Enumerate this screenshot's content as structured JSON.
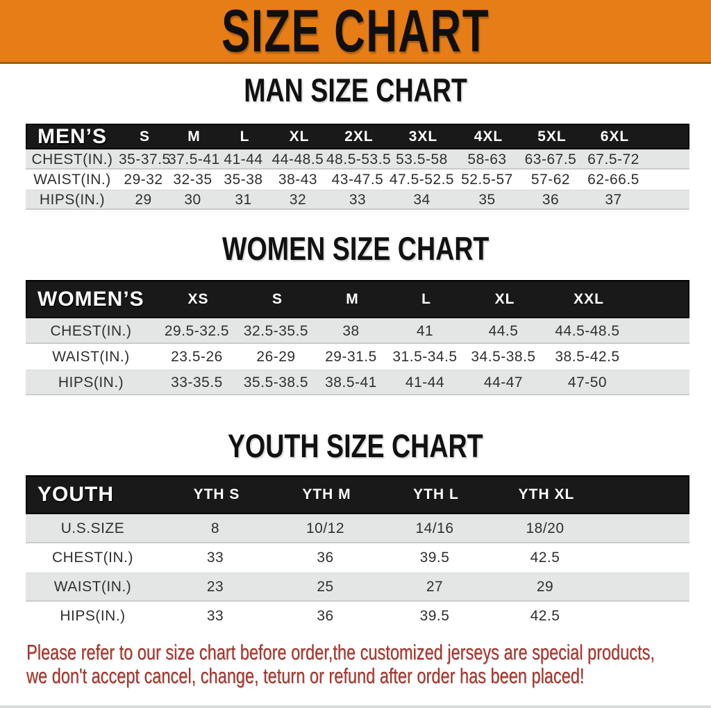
{
  "banner": {
    "title": "SIZE CHART"
  },
  "sections": {
    "men": {
      "heading": "MAN SIZE CHART",
      "header_label": "MEN’S",
      "columns": [
        "S",
        "M",
        "L",
        "XL",
        "2XL",
        "3XL",
        "4XL",
        "5XL",
        "6XL"
      ],
      "rows": [
        {
          "label": "CHEST(IN.)",
          "values": [
            "35-37.5",
            "37.5-41",
            "41-44",
            "44-48.5",
            "48.5-53.5",
            "53.5-58",
            "58-63",
            "63-67.5",
            "67.5-72"
          ]
        },
        {
          "label": "WAIST(IN.)",
          "values": [
            "29-32",
            "32-35",
            "35-38",
            "38-43",
            "43-47.5",
            "47.5-52.5",
            "52.5-57",
            "57-62",
            "62-66.5"
          ]
        },
        {
          "label": "HIPS(IN.)",
          "values": [
            "29",
            "30",
            "31",
            "32",
            "33",
            "34",
            "35",
            "36",
            "37"
          ]
        }
      ]
    },
    "women": {
      "heading": "WOMEN SIZE CHART",
      "header_label": "WOMEN’S",
      "columns": [
        "XS",
        "S",
        "M",
        "L",
        "XL",
        "XXL"
      ],
      "rows": [
        {
          "label": "CHEST(IN.)",
          "values": [
            "29.5-32.5",
            "32.5-35.5",
            "38",
            "41",
            "44.5",
            "44.5-48.5"
          ]
        },
        {
          "label": "WAIST(IN.)",
          "values": [
            "23.5-26",
            "26-29",
            "29-31.5",
            "31.5-34.5",
            "34.5-38.5",
            "38.5-42.5"
          ]
        },
        {
          "label": "HIPS(IN.)",
          "values": [
            "33-35.5",
            "35.5-38.5",
            "38.5-41",
            "41-44",
            "44-47",
            "47-50"
          ]
        }
      ]
    },
    "youth": {
      "heading": "YOUTH SIZE CHART",
      "header_label": "YOUTH",
      "columns": [
        "YTH S",
        "YTH M",
        "YTH L",
        "YTH XL"
      ],
      "rows": [
        {
          "label": "U.S.SIZE",
          "values": [
            "8",
            "10/12",
            "14/16",
            "18/20"
          ]
        },
        {
          "label": "CHEST(IN.)",
          "values": [
            "33",
            "36",
            "39.5",
            "42.5"
          ]
        },
        {
          "label": "WAIST(IN.)",
          "values": [
            "23",
            "25",
            "27",
            "29"
          ]
        },
        {
          "label": "HIPS(IN.)",
          "values": [
            "33",
            "36",
            "39.5",
            "42.5"
          ]
        }
      ]
    }
  },
  "footer": {
    "line1": "Please refer to our size chart before order,the customized jerseys are special products,",
    "line2": "we don't accept cancel, change, teturn or refund after order has been placed!"
  },
  "colors": {
    "banner_bg": "#e67d16",
    "table_header_bg": "#191919",
    "row_alt_bg": "#e4e6e6",
    "footer_text": "#a5362c"
  }
}
